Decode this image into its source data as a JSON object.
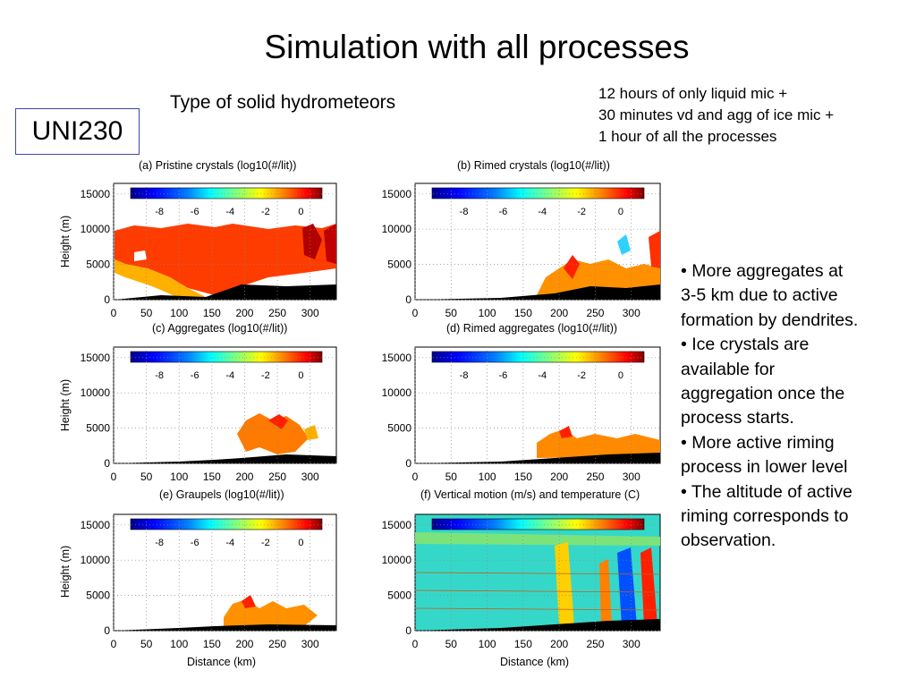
{
  "slide": {
    "title": "Simulation with all processes",
    "subtitle": "Type of solid hydrometeors",
    "label_box": "UNI230",
    "timeline": [
      "12 hours of only liquid mic +",
      "30 minutes vd and agg of ice mic +",
      "1 hour of all the processes"
    ],
    "bullets": [
      "• More aggregates at",
      "3-5 km due to active",
      "formation by dendrites.",
      "• Ice crystals are",
      "available for",
      "aggregation once the",
      "process starts.",
      "• More active riming",
      "process in lower level",
      "• The altitude of active",
      "riming corresponds to",
      "observation."
    ]
  },
  "figure": {
    "y_label": "Height (m)",
    "x_label": "Distance (km)",
    "y_ticks": [
      "15000",
      "10000",
      "5000",
      "0"
    ],
    "x_ticks": [
      "0",
      "50",
      "100",
      "150",
      "200",
      "250",
      "300"
    ],
    "colorbar_ticks": [
      "-8",
      "-6",
      "-4",
      "-2",
      "0"
    ],
    "colorbar_colors": [
      "#00008f",
      "#0000ff",
      "#0080ff",
      "#00ffff",
      "#80ff80",
      "#ffff00",
      "#ff8000",
      "#ff0000",
      "#800000"
    ],
    "panels": [
      {
        "title": "(a) Pristine crystals (log10(#/lit))"
      },
      {
        "title": "(b) Rimed crystals (log10(#/lit))"
      },
      {
        "title": "(c) Aggregates (log10(#/lit))"
      },
      {
        "title": "(d) Rimed aggregates (log10(#/lit))"
      },
      {
        "title": "(e) Graupels (log10(#/lit))"
      },
      {
        "title": "(f) Vertical motion (m/s) and temperature (C)"
      }
    ]
  },
  "chart_data": [
    {
      "type": "heatmap",
      "title": "(a) Pristine crystals (log10(#/lit))",
      "xlabel": "",
      "ylabel": "Height (m)",
      "xlim": [
        0,
        340
      ],
      "ylim": [
        0,
        16000
      ],
      "colorbar_range": [
        -10,
        1
      ]
    },
    {
      "type": "heatmap",
      "title": "(b) Rimed crystals (log10(#/lit))",
      "xlabel": "",
      "ylabel": "",
      "xlim": [
        0,
        340
      ],
      "ylim": [
        0,
        16000
      ],
      "colorbar_range": [
        -10,
        1
      ]
    },
    {
      "type": "heatmap",
      "title": "(c) Aggregates (log10(#/lit))",
      "xlabel": "",
      "ylabel": "Height (m)",
      "xlim": [
        0,
        340
      ],
      "ylim": [
        0,
        16000
      ],
      "colorbar_range": [
        -10,
        1
      ]
    },
    {
      "type": "heatmap",
      "title": "(d) Rimed aggregates (log10(#/lit))",
      "xlabel": "",
      "ylabel": "",
      "xlim": [
        0,
        340
      ],
      "ylim": [
        0,
        16000
      ],
      "colorbar_range": [
        -10,
        1
      ]
    },
    {
      "type": "heatmap",
      "title": "(e) Graupels (log10(#/lit))",
      "xlabel": "Distance (km)",
      "ylabel": "Height (m)",
      "xlim": [
        0,
        340
      ],
      "ylim": [
        0,
        16000
      ],
      "colorbar_range": [
        -10,
        1
      ]
    },
    {
      "type": "heatmap",
      "title": "(f) Vertical motion (m/s) and temperature (C)",
      "xlabel": "Distance (km)",
      "ylabel": "",
      "xlim": [
        0,
        340
      ],
      "ylim": [
        0,
        16000
      ]
    }
  ]
}
